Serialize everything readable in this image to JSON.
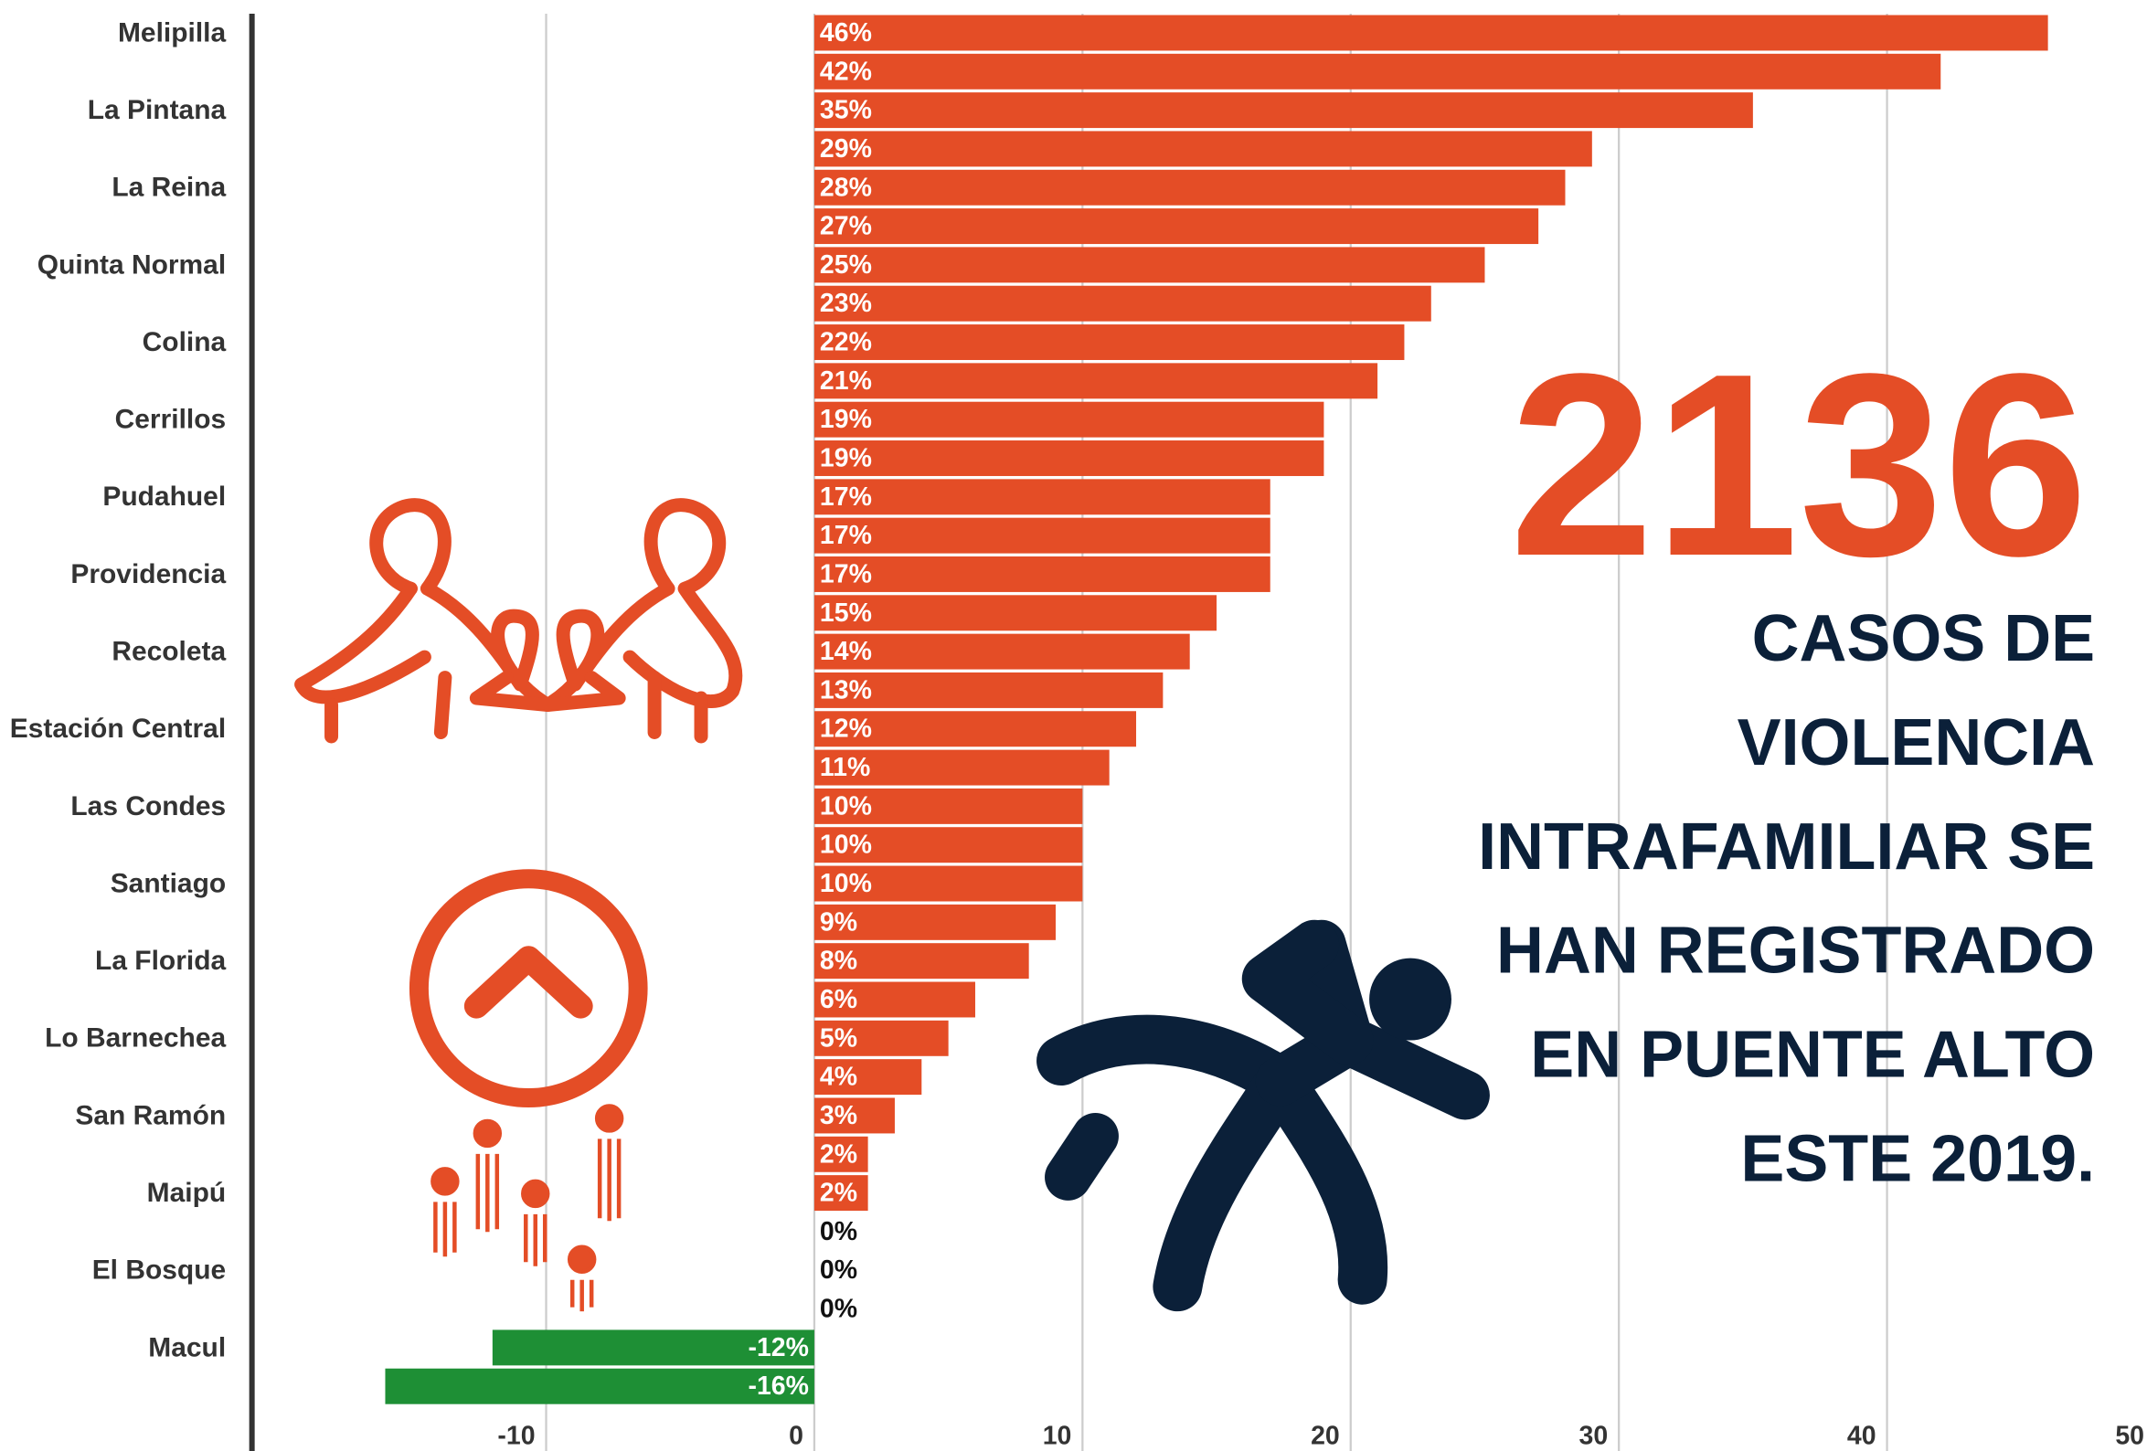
{
  "chart_data": {
    "type": "bar",
    "orientation": "horizontal",
    "categories": [
      "Melipilla",
      null,
      "La Pintana",
      null,
      "La Reina",
      null,
      "Quinta Normal",
      null,
      "Colina",
      null,
      "Cerrillos",
      null,
      "Pudahuel",
      null,
      "Providencia",
      null,
      "Recoleta",
      null,
      "Estación Central",
      null,
      "Las Condes",
      null,
      "Santiago",
      null,
      "La Florida",
      null,
      "Lo Barnechea",
      null,
      "San Ramón",
      null,
      "Maipú",
      null,
      "El Bosque",
      null,
      "Macul",
      null
    ],
    "values": [
      46,
      42,
      35,
      29,
      28,
      27,
      25,
      23,
      22,
      21,
      19,
      19,
      17,
      17,
      17,
      15,
      14,
      13,
      12,
      11,
      10,
      10,
      10,
      9,
      8,
      6,
      5,
      4,
      3,
      2,
      2,
      0,
      0,
      0,
      -12,
      -16
    ],
    "value_labels": [
      "46%",
      "42%",
      "35%",
      "29%",
      "28%",
      "27%",
      "25%",
      "23%",
      "22%",
      "21%",
      "19%",
      "19%",
      "17%",
      "17%",
      "17%",
      "15%",
      "14%",
      "13%",
      "12%",
      "11%",
      "10%",
      "10%",
      "10%",
      "9%",
      "8%",
      "6%",
      "5%",
      "4%",
      "3%",
      "2%",
      "2%",
      "0%",
      "0%",
      "0%",
      "-12%",
      "-16%"
    ],
    "positive_color": "#e44d26",
    "negative_color": "#1e8f35",
    "xlim": [
      -20,
      50
    ],
    "xticks": [
      -10,
      0,
      10,
      20,
      30,
      40,
      50
    ],
    "grid": true,
    "headline_number": "2136",
    "headline_lines": [
      "CASOS DE",
      "VIOLENCIA",
      "INTRAFAMILIAR SE",
      "HAN REGISTRADO",
      "EN PUENTE ALTO",
      "ESTE 2019."
    ]
  }
}
